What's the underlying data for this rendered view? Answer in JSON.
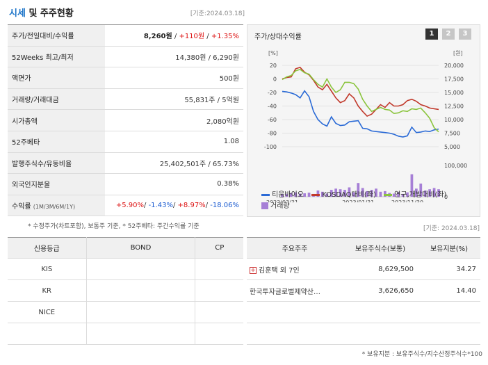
{
  "header": {
    "title_highlight": "시세",
    "title_rest": " 및 주주현황",
    "date": "[기준:2024.03.18]"
  },
  "price": {
    "rows": [
      {
        "label": "주가/전일대비/수익률",
        "type": "change",
        "price": "8,260원",
        "sep1": " / ",
        "diff": "+110원",
        "sep2": " / ",
        "pct": "+1.35%"
      },
      {
        "label": "52Weeks 최고/최저",
        "value": "14,380원 / 6,290원"
      },
      {
        "label": "액면가",
        "value": "500원"
      },
      {
        "label": "거래량/거래대금",
        "value": "55,831주 / 5억원"
      },
      {
        "label": "시가총액",
        "value": "2,080억원"
      },
      {
        "label": "52주베타",
        "value": "1.08"
      },
      {
        "label": "발행주식수/유동비율",
        "value": "25,402,501주 / 65.73%"
      },
      {
        "label": "외국인지분율",
        "value": "0.38%"
      },
      {
        "label": "수익률",
        "sublabel": "(1M/3M/6M/1Y)",
        "type": "returns",
        "r1": "+5.90%",
        "r2": "-1.43%",
        "r3": "+8.97%",
        "r4": "-18.06%",
        "sep": "/ "
      }
    ],
    "note": "* 수정주가(차트포함), 보통주 기준, * 52주베타: 주간수익률 기준"
  },
  "chart_panel": {
    "title": "주가/상대수익률",
    "buttons": [
      "1",
      "2",
      "3"
    ],
    "legend": [
      "티움바이오",
      "KOSDAQ대비(좌)",
      "연구,개발대비(좌)",
      "거래량"
    ]
  },
  "chart_data": {
    "type": "line",
    "left_unit": "[%]",
    "right_unit": "[원]",
    "left_ylim": [
      -100,
      20
    ],
    "left_ticks": [
      "20",
      "0",
      "-20",
      "-40",
      "-60",
      "-80",
      "-100"
    ],
    "right_ylim": [
      5000,
      20000
    ],
    "right_ticks": [
      "20,000",
      "17,500",
      "15,000",
      "12,500",
      "10,000",
      "7,500",
      "5,000"
    ],
    "volume_ticks": [
      "100,000",
      "0"
    ],
    "volume_max": 100000,
    "x_labels": [
      "2022/03/31",
      "2023/01/31",
      "2023/11/30"
    ],
    "x_count": 36,
    "series": [
      {
        "name": "티움바이오",
        "color": "#2a6ad6",
        "axis": "right",
        "values": [
          15200,
          15100,
          14900,
          14600,
          14000,
          15300,
          14200,
          11500,
          10000,
          9200,
          8800,
          10500,
          9300,
          8900,
          9000,
          9600,
          9700,
          9800,
          8400,
          8300,
          7900,
          7800,
          7700,
          7600,
          7500,
          7300,
          6950,
          6800,
          7000,
          8600,
          7600,
          7700,
          7900,
          7800,
          8100,
          8260
        ]
      },
      {
        "name": "KOSDAQ대비(좌)",
        "color": "#c1392b",
        "axis": "left",
        "values": [
          0,
          2,
          3,
          15,
          17,
          10,
          6,
          -2,
          -12,
          -16,
          -8,
          -18,
          -28,
          -35,
          -32,
          -22,
          -28,
          -40,
          -48,
          -55,
          -52,
          -45,
          -38,
          -42,
          -35,
          -40,
          -40,
          -38,
          -32,
          -30,
          -33,
          -38,
          -40,
          -43,
          -44,
          -45
        ]
      },
      {
        "name": "연구,개발대비(좌)",
        "color": "#8ac43c",
        "axis": "left",
        "values": [
          -1,
          3,
          5,
          12,
          14,
          9,
          7,
          -1,
          -8,
          -12,
          0,
          -12,
          -20,
          -16,
          -5,
          -5,
          -7,
          -15,
          -30,
          -40,
          -48,
          -45,
          -42,
          -45,
          -46,
          -51,
          -50,
          -47,
          -48,
          -44,
          -45,
          -43,
          -50,
          -58,
          -72,
          -78
        ]
      },
      {
        "name": "거래량",
        "color": "#a67fd6",
        "axis": "volume",
        "values": [
          8000,
          9000,
          12000,
          14000,
          10000,
          11000,
          13000,
          9000,
          20000,
          16000,
          10000,
          22000,
          26000,
          24000,
          22000,
          30000,
          14000,
          44000,
          28000,
          18000,
          22000,
          26000,
          16000,
          18000,
          12000,
          10000,
          15000,
          9000,
          14000,
          72000,
          26000,
          42000,
          20000,
          24000,
          28000,
          24000
        ]
      }
    ]
  },
  "credit": {
    "headers": [
      "신용등급",
      "BOND",
      "CP"
    ],
    "rows": [
      [
        "KIS",
        "",
        ""
      ],
      [
        "KR",
        "",
        ""
      ],
      [
        "NICE",
        "",
        ""
      ],
      [
        "",
        "",
        ""
      ]
    ]
  },
  "shareholders": {
    "date": "[기준: 2024.03.18]",
    "headers": [
      "주요주주",
      "보유주식수(보통)",
      "보유지분(%)"
    ],
    "rows": [
      {
        "name": "김훈택 외 7인",
        "expand": true,
        "shares": "8,629,500",
        "pct": "34.27"
      },
      {
        "name": "한국투자글로벌제약산…",
        "expand": false,
        "shares": "3,626,650",
        "pct": "14.40"
      },
      {
        "name": "",
        "expand": false,
        "shares": "",
        "pct": ""
      },
      {
        "name": "",
        "expand": false,
        "shares": "",
        "pct": ""
      },
      {
        "name": "",
        "expand": false,
        "shares": "",
        "pct": ""
      }
    ],
    "note": "* 보유지분 : 보유주식수/지수산정주식수*100"
  }
}
